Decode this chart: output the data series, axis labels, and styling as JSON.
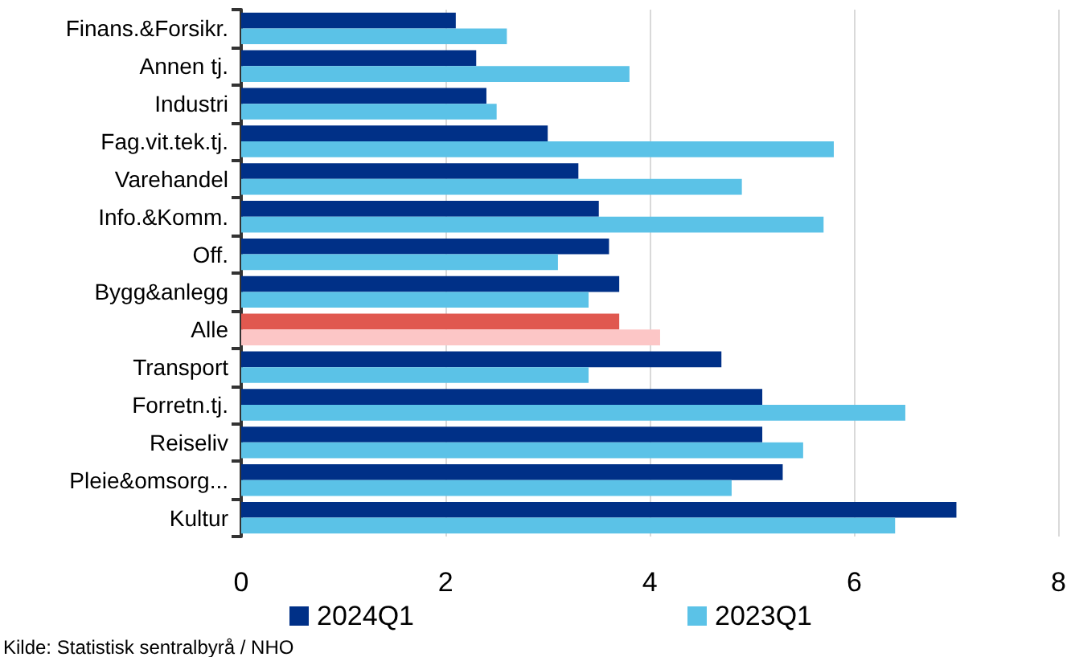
{
  "chart_data": {
    "type": "bar",
    "orientation": "horizontal",
    "categories": [
      "Finans.&Forsikr.",
      "Annen tj.",
      "Industri",
      "Fag.vit.tek.tj.",
      "Varehandel",
      "Info.&Komm.",
      "Off.",
      "Bygg&anlegg",
      "Alle",
      "Transport",
      "Forretn.tj.",
      "Reiseliv",
      "Pleie&omsorg...",
      "Kultur"
    ],
    "series": [
      {
        "name": "2024Q1",
        "color": "#003087",
        "colors": [
          "#003087",
          "#003087",
          "#003087",
          "#003087",
          "#003087",
          "#003087",
          "#003087",
          "#003087",
          "#e0584f",
          "#003087",
          "#003087",
          "#003087",
          "#003087",
          "#003087"
        ],
        "values": [
          2.1,
          2.3,
          2.4,
          3.0,
          3.3,
          3.5,
          3.6,
          3.7,
          3.7,
          4.7,
          5.1,
          5.1,
          5.3,
          7.0
        ]
      },
      {
        "name": "2023Q1",
        "color": "#5bc2e7",
        "colors": [
          "#5bc2e7",
          "#5bc2e7",
          "#5bc2e7",
          "#5bc2e7",
          "#5bc2e7",
          "#5bc2e7",
          "#5bc2e7",
          "#5bc2e7",
          "#fcc6c6",
          "#5bc2e7",
          "#5bc2e7",
          "#5bc2e7",
          "#5bc2e7",
          "#5bc2e7"
        ],
        "values": [
          2.6,
          3.8,
          2.5,
          5.8,
          4.9,
          5.7,
          3.1,
          3.4,
          4.1,
          3.4,
          6.5,
          5.5,
          4.8,
          6.4
        ]
      }
    ],
    "xlim": [
      0,
      8
    ],
    "xticks": [
      0,
      2,
      4,
      6,
      8
    ],
    "grid": "x",
    "legend": "bottom",
    "annotations": [
      "Kilde: Statistisk sentralbyrå / NHO"
    ]
  }
}
